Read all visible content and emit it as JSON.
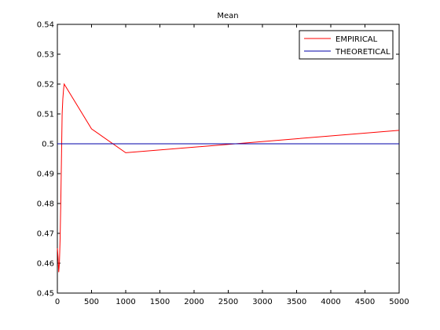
{
  "chart_data": {
    "type": "line",
    "title": "Mean",
    "xlabel": "",
    "ylabel": "",
    "xlim": [
      0,
      5000
    ],
    "ylim": [
      0.45,
      0.54
    ],
    "xticks": [
      0,
      500,
      1000,
      1500,
      2000,
      2500,
      3000,
      3500,
      4000,
      4500,
      5000
    ],
    "yticks": [
      0.45,
      0.46,
      0.47,
      0.48,
      0.49,
      0.5,
      0.51,
      0.52,
      0.53,
      0.54
    ],
    "xtick_labels": [
      "0",
      "500",
      "1000",
      "1500",
      "2000",
      "2500",
      "3000",
      "3500",
      "4000",
      "4500",
      "5000"
    ],
    "ytick_labels": [
      "0.45",
      "0.46",
      "0.47",
      "0.48",
      "0.49",
      "0.5",
      "0.51",
      "0.52",
      "0.53",
      "0.54"
    ],
    "grid": false,
    "legend_position": "top-right",
    "series": [
      {
        "name": "EMPIRICAL",
        "color": "#ff0000",
        "x": [
          1,
          10,
          20,
          30,
          40,
          50,
          60,
          70,
          80,
          90,
          100,
          500,
          1000,
          5000
        ],
        "y": [
          0.465,
          0.462,
          0.457,
          0.46,
          0.468,
          0.48,
          0.495,
          0.51,
          0.515,
          0.518,
          0.52,
          0.505,
          0.497,
          0.5045
        ]
      },
      {
        "name": "THEORETICAL",
        "color": "#0000aa",
        "x": [
          0,
          5000
        ],
        "y": [
          0.5,
          0.5
        ]
      }
    ]
  }
}
